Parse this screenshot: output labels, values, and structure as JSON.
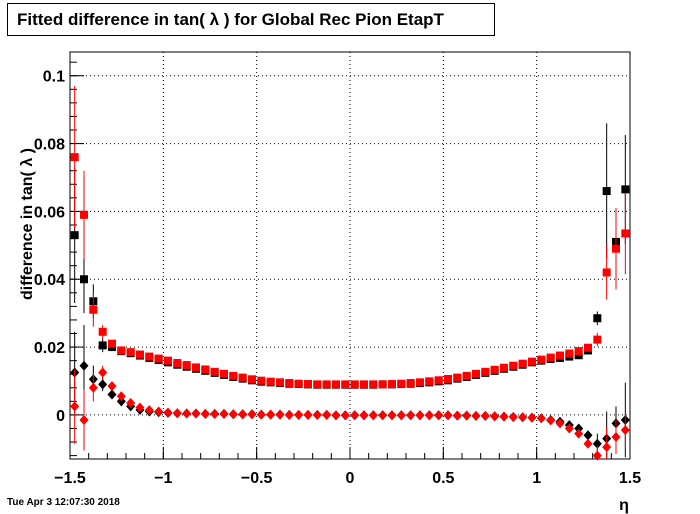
{
  "chart_data": {
    "type": "scatter",
    "title": "Fitted difference in tan( λ ) for Global Rec Pion EtapT",
    "xlabel": "η",
    "ylabel": "difference in tan( λ )",
    "xlim": [
      -1.5,
      1.5
    ],
    "ylim": [
      -0.013,
      0.107
    ],
    "x_ticks": [
      "−1.5",
      "−1",
      "−0.5",
      "0",
      "0.5",
      "1",
      "1.5"
    ],
    "y_ticks": [
      "0",
      "0.02",
      "0.04",
      "0.06",
      "0.08",
      "0.1"
    ],
    "grid": true,
    "series": [
      {
        "marker": "square",
        "color": "#000000",
        "x": [
          -1.475,
          -1.425,
          -1.375,
          -1.325,
          -1.275,
          -1.225,
          -1.175,
          -1.125,
          -1.075,
          -1.025,
          -0.975,
          -0.925,
          -0.875,
          -0.825,
          -0.775,
          -0.725,
          -0.675,
          -0.625,
          -0.575,
          -0.525,
          -0.475,
          -0.425,
          -0.375,
          -0.325,
          -0.275,
          -0.225,
          -0.175,
          -0.125,
          -0.075,
          -0.025,
          0.025,
          0.075,
          0.125,
          0.175,
          0.225,
          0.275,
          0.325,
          0.375,
          0.425,
          0.475,
          0.525,
          0.575,
          0.625,
          0.675,
          0.725,
          0.775,
          0.825,
          0.875,
          0.925,
          0.975,
          1.025,
          1.075,
          1.125,
          1.175,
          1.225,
          1.275,
          1.325,
          1.375,
          1.425,
          1.475
        ],
        "y": [
          0.053,
          0.04,
          0.0335,
          0.0205,
          0.02,
          0.0188,
          0.0182,
          0.0175,
          0.0168,
          0.0162,
          0.0155,
          0.0148,
          0.0142,
          0.0136,
          0.013,
          0.0124,
          0.0118,
          0.0112,
          0.0107,
          0.0102,
          0.0098,
          0.0096,
          0.0094,
          0.0092,
          0.0091,
          0.009,
          0.0089,
          0.0089,
          0.0089,
          0.0089,
          0.0089,
          0.0089,
          0.0089,
          0.009,
          0.009,
          0.0091,
          0.0092,
          0.0094,
          0.0096,
          0.0099,
          0.0102,
          0.0107,
          0.0112,
          0.0118,
          0.0124,
          0.013,
          0.0136,
          0.0142,
          0.0148,
          0.0155,
          0.016,
          0.0165,
          0.0168,
          0.0172,
          0.0176,
          0.019,
          0.0285,
          0.066,
          0.051,
          0.0665
        ],
        "err": [
          0.02,
          0.01,
          0.005,
          0.002,
          0.001,
          0.001,
          0.001,
          0.0005,
          0.0005,
          0.0005,
          0.0005,
          0.0005,
          0.0005,
          0.0005,
          0.0005,
          0.0005,
          0.0005,
          0.0005,
          0.0005,
          0.0005,
          0.0005,
          0.0005,
          0.0005,
          0.0005,
          0.0005,
          0.0005,
          0.0005,
          0.0005,
          0.0005,
          0.0005,
          0.0005,
          0.0005,
          0.0005,
          0.0005,
          0.0005,
          0.0005,
          0.0005,
          0.0005,
          0.0005,
          0.0005,
          0.0005,
          0.0005,
          0.0005,
          0.0005,
          0.0005,
          0.0005,
          0.0005,
          0.0005,
          0.0005,
          0.0005,
          0.0005,
          0.0005,
          0.0005,
          0.0005,
          0.0005,
          0.001,
          0.002,
          0.02,
          0.01,
          0.016
        ]
      },
      {
        "marker": "square",
        "color": "#ff0000",
        "x": [
          -1.475,
          -1.425,
          -1.375,
          -1.325,
          -1.275,
          -1.225,
          -1.175,
          -1.125,
          -1.075,
          -1.025,
          -0.975,
          -0.925,
          -0.875,
          -0.825,
          -0.775,
          -0.725,
          -0.675,
          -0.625,
          -0.575,
          -0.525,
          -0.475,
          -0.425,
          -0.375,
          -0.325,
          -0.275,
          -0.225,
          -0.175,
          -0.125,
          -0.075,
          -0.025,
          0.025,
          0.075,
          0.125,
          0.175,
          0.225,
          0.275,
          0.325,
          0.375,
          0.425,
          0.475,
          0.525,
          0.575,
          0.625,
          0.675,
          0.725,
          0.775,
          0.825,
          0.875,
          0.925,
          0.975,
          1.025,
          1.075,
          1.125,
          1.175,
          1.225,
          1.275,
          1.325,
          1.375,
          1.425,
          1.475
        ],
        "y": [
          0.076,
          0.059,
          0.031,
          0.0245,
          0.021,
          0.019,
          0.0185,
          0.0178,
          0.0172,
          0.0166,
          0.016,
          0.0153,
          0.0147,
          0.014,
          0.0134,
          0.0127,
          0.0121,
          0.0115,
          0.011,
          0.0105,
          0.0101,
          0.0098,
          0.0096,
          0.0094,
          0.0092,
          0.0091,
          0.009,
          0.009,
          0.009,
          0.009,
          0.009,
          0.009,
          0.009,
          0.009,
          0.0091,
          0.0092,
          0.0094,
          0.0096,
          0.0099,
          0.0102,
          0.0106,
          0.011,
          0.0115,
          0.0121,
          0.0127,
          0.0133,
          0.0139,
          0.0145,
          0.0151,
          0.0157,
          0.0163,
          0.0169,
          0.0175,
          0.0181,
          0.0188,
          0.0198,
          0.0222,
          0.042,
          0.049,
          0.0535
        ],
        "err": [
          0.021,
          0.013,
          0.005,
          0.002,
          0.001,
          0.001,
          0.0005,
          0.0005,
          0.0005,
          0.0005,
          0.0005,
          0.0005,
          0.0005,
          0.0005,
          0.0005,
          0.0005,
          0.0005,
          0.0005,
          0.0005,
          0.0005,
          0.0005,
          0.0005,
          0.0005,
          0.0005,
          0.0005,
          0.0005,
          0.0005,
          0.0005,
          0.0005,
          0.0005,
          0.0005,
          0.0005,
          0.0005,
          0.0005,
          0.0005,
          0.0005,
          0.0005,
          0.0005,
          0.0005,
          0.0005,
          0.0005,
          0.0005,
          0.0005,
          0.0005,
          0.0005,
          0.0005,
          0.0005,
          0.0005,
          0.0005,
          0.0005,
          0.0005,
          0.0005,
          0.0005,
          0.0005,
          0.0005,
          0.001,
          0.002,
          0.008,
          0.012,
          0.012
        ]
      },
      {
        "marker": "diamond",
        "color": "#000000",
        "x": [
          -1.475,
          -1.425,
          -1.375,
          -1.325,
          -1.275,
          -1.225,
          -1.175,
          -1.125,
          -1.075,
          -1.025,
          -0.975,
          -0.925,
          -0.875,
          -0.825,
          -0.775,
          -0.725,
          -0.675,
          -0.625,
          -0.575,
          -0.525,
          -0.475,
          -0.425,
          -0.375,
          -0.325,
          -0.275,
          -0.225,
          -0.175,
          -0.125,
          -0.075,
          -0.025,
          0.025,
          0.075,
          0.125,
          0.175,
          0.225,
          0.275,
          0.325,
          0.375,
          0.425,
          0.475,
          0.525,
          0.575,
          0.625,
          0.675,
          0.725,
          0.775,
          0.825,
          0.875,
          0.925,
          0.975,
          1.025,
          1.075,
          1.125,
          1.175,
          1.225,
          1.275,
          1.325,
          1.375,
          1.425,
          1.475
        ],
        "y": [
          0.0125,
          0.0145,
          0.0105,
          0.009,
          0.006,
          0.004,
          0.0025,
          0.0015,
          0.001,
          0.0008,
          0.0006,
          0.0005,
          0.0004,
          0.0004,
          0.0003,
          0.0003,
          0.0003,
          0.0002,
          0.0002,
          0.0002,
          0.0001,
          0.0001,
          0.0001,
          0.0,
          0.0,
          0.0,
          0.0,
          0.0,
          -0.0001,
          -0.0001,
          -0.0001,
          -0.0001,
          -0.0001,
          -0.0001,
          -0.0001,
          -0.0001,
          -0.0001,
          -0.0001,
          -0.0001,
          -0.0001,
          -0.0001,
          -0.0002,
          -0.0002,
          -0.0003,
          -0.0003,
          -0.0004,
          -0.0005,
          -0.0006,
          -0.0007,
          -0.0008,
          -0.001,
          -0.0015,
          -0.002,
          -0.003,
          -0.004,
          -0.006,
          -0.0085,
          -0.007,
          -0.0025,
          -0.0015
        ],
        "err": [
          0.012,
          0.012,
          0.004,
          0.002,
          0.001,
          0.0005,
          0.0005,
          0.0005,
          0.0005,
          0.0005,
          0.0005,
          0.0005,
          0.0005,
          0.0005,
          0.0005,
          0.0005,
          0.0005,
          0.0005,
          0.0005,
          0.0005,
          0.0005,
          0.0005,
          0.0005,
          0.0005,
          0.0005,
          0.0005,
          0.0005,
          0.0005,
          0.0005,
          0.0005,
          0.0005,
          0.0005,
          0.0005,
          0.0005,
          0.0005,
          0.0005,
          0.0005,
          0.0005,
          0.0005,
          0.0005,
          0.0005,
          0.0005,
          0.0005,
          0.0005,
          0.0005,
          0.0005,
          0.0005,
          0.0005,
          0.0005,
          0.0005,
          0.0005,
          0.0005,
          0.0005,
          0.0005,
          0.001,
          0.001,
          0.003,
          0.008,
          0.005,
          0.011
        ]
      },
      {
        "marker": "diamond",
        "color": "#ff0000",
        "x": [
          -1.475,
          -1.425,
          -1.375,
          -1.325,
          -1.275,
          -1.225,
          -1.175,
          -1.125,
          -1.075,
          -1.025,
          -0.975,
          -0.925,
          -0.875,
          -0.825,
          -0.775,
          -0.725,
          -0.675,
          -0.625,
          -0.575,
          -0.525,
          -0.475,
          -0.425,
          -0.375,
          -0.325,
          -0.275,
          -0.225,
          -0.175,
          -0.125,
          -0.075,
          -0.025,
          0.025,
          0.075,
          0.125,
          0.175,
          0.225,
          0.275,
          0.325,
          0.375,
          0.425,
          0.475,
          0.525,
          0.575,
          0.625,
          0.675,
          0.725,
          0.775,
          0.825,
          0.875,
          0.925,
          0.975,
          1.025,
          1.075,
          1.125,
          1.175,
          1.225,
          1.275,
          1.325,
          1.375,
          1.425,
          1.475
        ],
        "y": [
          0.0025,
          -0.0015,
          0.008,
          0.0125,
          0.0085,
          0.0055,
          0.0035,
          0.0022,
          0.0014,
          0.001,
          0.0007,
          0.0005,
          0.0004,
          0.0004,
          0.0003,
          0.0003,
          0.0003,
          0.0002,
          0.0002,
          0.0002,
          0.0001,
          0.0001,
          0.0001,
          0.0,
          0.0,
          0.0,
          0.0,
          0.0,
          -0.0001,
          -0.0001,
          -0.0001,
          -0.0001,
          -0.0001,
          -0.0001,
          -0.0001,
          -0.0001,
          -0.0001,
          -0.0001,
          -0.0001,
          -0.0001,
          -0.0001,
          -0.0002,
          -0.0002,
          -0.0003,
          -0.0003,
          -0.0004,
          -0.0005,
          -0.0006,
          -0.0007,
          -0.0008,
          -0.001,
          -0.0016,
          -0.0025,
          -0.004,
          -0.0055,
          -0.0085,
          -0.012,
          -0.0095,
          -0.0065,
          -0.0045
        ],
        "err": [
          0.011,
          0.009,
          0.004,
          0.002,
          0.001,
          0.0005,
          0.0005,
          0.0005,
          0.0005,
          0.0005,
          0.0005,
          0.0005,
          0.0005,
          0.0005,
          0.0005,
          0.0005,
          0.0005,
          0.0005,
          0.0005,
          0.0005,
          0.0005,
          0.0005,
          0.0005,
          0.0005,
          0.0005,
          0.0005,
          0.0005,
          0.0005,
          0.0005,
          0.0005,
          0.0005,
          0.0005,
          0.0005,
          0.0005,
          0.0005,
          0.0005,
          0.0005,
          0.0005,
          0.0005,
          0.0005,
          0.0005,
          0.0005,
          0.0005,
          0.0005,
          0.0005,
          0.0005,
          0.0005,
          0.0005,
          0.0005,
          0.0005,
          0.0005,
          0.0005,
          0.0005,
          0.0005,
          0.001,
          0.001,
          0.003,
          0.006,
          0.005,
          0.005
        ]
      }
    ]
  },
  "timestamp": "Tue Apr  3 12:07:30 2018"
}
